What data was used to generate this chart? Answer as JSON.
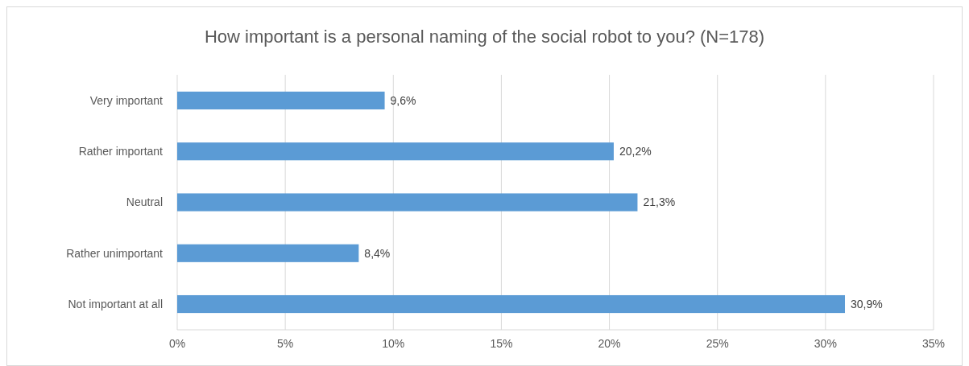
{
  "chart_data": {
    "type": "bar",
    "orientation": "horizontal",
    "title": "How important is a personal naming of the social robot to you? (N=178)",
    "categories": [
      "Very important",
      "Rather important",
      "Neutral",
      "Rather unimportant",
      "Not important at all"
    ],
    "values": [
      9.6,
      20.2,
      21.3,
      8.4,
      30.9
    ],
    "value_labels": [
      "9,6%",
      "20,2%",
      "21,3%",
      "8,4%",
      "30,9%"
    ],
    "color": "#5b9bd5",
    "xlim": [
      0,
      35
    ],
    "xticks": [
      {
        "value": 0,
        "label": "0%"
      },
      {
        "value": 5,
        "label": "5%"
      },
      {
        "value": 10,
        "label": "10%"
      },
      {
        "value": 15,
        "label": "15%"
      },
      {
        "value": 20,
        "label": "20%"
      },
      {
        "value": 25,
        "label": "25%"
      },
      {
        "value": 30,
        "label": "30%"
      },
      {
        "value": 35,
        "label": "35%"
      }
    ],
    "grid": "x"
  }
}
